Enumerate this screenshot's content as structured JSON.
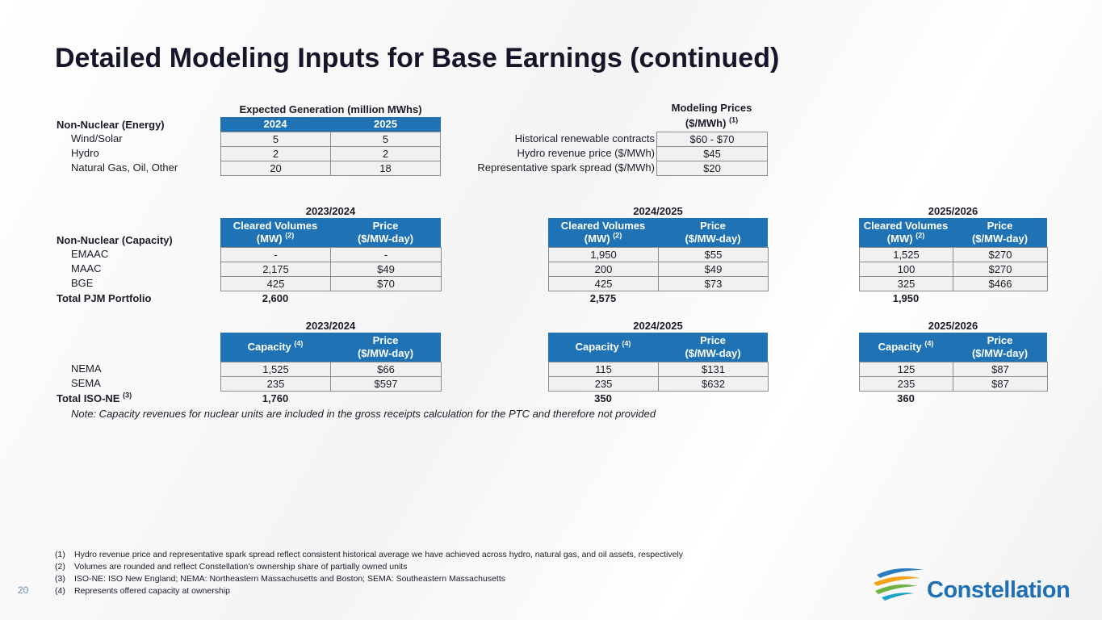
{
  "title": "Detailed Modeling Inputs for Base Earnings (continued)",
  "generation": {
    "header": "Expected Generation (million MWhs)",
    "label": "Non-Nuclear (Energy)",
    "columns": [
      "2024",
      "2025"
    ],
    "rows": [
      {
        "label": "Wind/Solar",
        "values": [
          "5",
          "5"
        ]
      },
      {
        "label": "Hydro",
        "values": [
          "2",
          "2"
        ]
      },
      {
        "label": "Natural Gas, Oil, Other",
        "values": [
          "20",
          "18"
        ]
      }
    ]
  },
  "prices": {
    "header": "Modeling Prices",
    "unit": "($/MWh)",
    "note": "(1)",
    "rows": [
      {
        "label": "Historical renewable contracts",
        "value": "$60 - $70"
      },
      {
        "label": "Hydro revenue price ($/MWh)",
        "value": "$45"
      },
      {
        "label": "Representative spark spread ($/MWh)",
        "value": "$20"
      }
    ]
  },
  "pjm": {
    "label": "Non-Nuclear (Capacity)",
    "row_labels": [
      "EMAAC",
      "MAAC",
      "BGE"
    ],
    "total_label": "Total PJM Portfolio",
    "volume_header": "Cleared Volumes",
    "volume_unit": "(MW)",
    "volume_note": "(2)",
    "price_header": "Price",
    "price_unit": "($/MW-day)",
    "blocks": [
      {
        "period": "2023/2024",
        "rows": [
          [
            "-",
            "-"
          ],
          [
            "2,175",
            "$49"
          ],
          [
            "425",
            "$70"
          ]
        ],
        "total": "2,600"
      },
      {
        "period": "2024/2025",
        "rows": [
          [
            "1,950",
            "$55"
          ],
          [
            "200",
            "$49"
          ],
          [
            "425",
            "$73"
          ]
        ],
        "total": "2,575"
      },
      {
        "period": "2025/2026",
        "rows": [
          [
            "1,525",
            "$270"
          ],
          [
            "100",
            "$270"
          ],
          [
            "325",
            "$466"
          ]
        ],
        "total": "1,950"
      }
    ]
  },
  "isone": {
    "row_labels": [
      "NEMA",
      "SEMA"
    ],
    "total_label": "Total ISO-NE",
    "total_note": "(3)",
    "capacity_header": "Capacity",
    "capacity_note": "(4)",
    "price_header": "Price",
    "price_unit": "($/MW-day)",
    "blocks": [
      {
        "period": "2023/2024",
        "rows": [
          [
            "1,525",
            "$66"
          ],
          [
            "235",
            "$597"
          ]
        ],
        "total": "1,760"
      },
      {
        "period": "2024/2025",
        "rows": [
          [
            "115",
            "$131"
          ],
          [
            "235",
            "$632"
          ]
        ],
        "total": "350"
      },
      {
        "period": "2025/2026",
        "rows": [
          [
            "125",
            "$87"
          ],
          [
            "235",
            "$87"
          ]
        ],
        "total": "360"
      }
    ]
  },
  "note": "Note: Capacity revenues for nuclear units are included in the gross receipts calculation for the PTC and therefore not provided",
  "footnotes": [
    {
      "marker": "(1)",
      "text": "Hydro revenue price and representative spark spread reflect consistent historical average we have achieved across hydro, natural gas, and oil assets, respectively"
    },
    {
      "marker": "(2)",
      "text": "Volumes are rounded and reflect Constellation’s ownership share of partially owned units"
    },
    {
      "marker": "(3)",
      "text": "ISO-NE: ISO New England; NEMA: Northeastern Massachusetts and Boston; SEMA: Southeastern Massachusetts"
    },
    {
      "marker": "(4)",
      "text": "Represents offered capacity at ownership"
    }
  ],
  "page_number": "20",
  "logo": "Constellation"
}
